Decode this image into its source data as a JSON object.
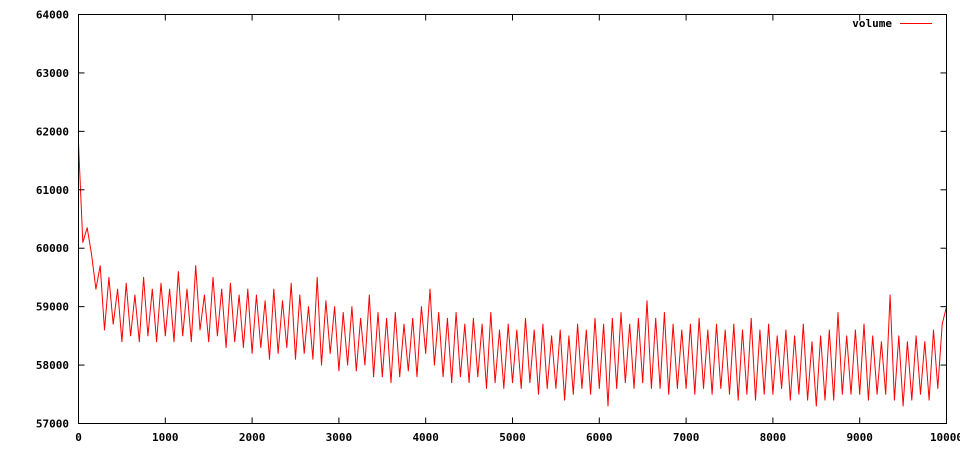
{
  "chart_data": {
    "type": "line",
    "title": "",
    "xlabel": "",
    "ylabel": "",
    "xlim": [
      0,
      10000
    ],
    "ylim": [
      57000,
      64000
    ],
    "x_ticks": [
      "0",
      "1000",
      "2000",
      "3000",
      "4000",
      "5000",
      "6000",
      "7000",
      "8000",
      "9000",
      "10000"
    ],
    "y_ticks": [
      "57000",
      "58000",
      "59000",
      "60000",
      "61000",
      "62000",
      "63000",
      "64000"
    ],
    "grid": false,
    "legend_position": "top-right",
    "series": [
      {
        "name": "volume",
        "color": "#ff0000",
        "x_interval": 50,
        "y": [
          61800,
          60100,
          60350,
          59900,
          59300,
          59700,
          58600,
          59500,
          58700,
          59300,
          58400,
          59400,
          58500,
          59200,
          58400,
          59500,
          58500,
          59300,
          58400,
          59400,
          58500,
          59300,
          58400,
          59600,
          58500,
          59300,
          58400,
          59700,
          58600,
          59200,
          58400,
          59500,
          58500,
          59300,
          58300,
          59400,
          58400,
          59200,
          58300,
          59300,
          58200,
          59200,
          58300,
          59100,
          58100,
          59300,
          58200,
          59100,
          58300,
          59400,
          58100,
          59200,
          58200,
          59000,
          58100,
          59500,
          58000,
          59100,
          58200,
          59000,
          57900,
          58900,
          58000,
          59000,
          57900,
          58800,
          58000,
          59200,
          57800,
          58900,
          57800,
          58800,
          57700,
          58900,
          57800,
          58700,
          57900,
          58800,
          57800,
          59000,
          58200,
          59300,
          58000,
          58900,
          57800,
          58800,
          57700,
          58900,
          57800,
          58700,
          57700,
          58800,
          57800,
          58700,
          57600,
          58900,
          57700,
          58600,
          57600,
          58700,
          57700,
          58600,
          57600,
          58800,
          57700,
          58600,
          57500,
          58700,
          57600,
          58500,
          57600,
          58600,
          57400,
          58500,
          57500,
          58700,
          57600,
          58600,
          57500,
          58800,
          57600,
          58700,
          57300,
          58800,
          57600,
          58900,
          57700,
          58700,
          57600,
          58800,
          57700,
          59100,
          57600,
          58800,
          57600,
          58900,
          57500,
          58700,
          57600,
          58600,
          57600,
          58700,
          57500,
          58800,
          57600,
          58600,
          57500,
          58700,
          57600,
          58600,
          57500,
          58700,
          57400,
          58600,
          57500,
          58800,
          57400,
          58600,
          57500,
          58700,
          57500,
          58500,
          57600,
          58600,
          57400,
          58500,
          57500,
          58700,
          57400,
          58400,
          57300,
          58500,
          57400,
          58600,
          57400,
          58900,
          57500,
          58500,
          57500,
          58600,
          57500,
          58700,
          57400,
          58500,
          57500,
          58400,
          57500,
          59200,
          57400,
          58500,
          57300,
          58400,
          57400,
          58500,
          57500,
          58400,
          57400,
          58600,
          57600,
          58700,
          59000
        ]
      }
    ]
  }
}
